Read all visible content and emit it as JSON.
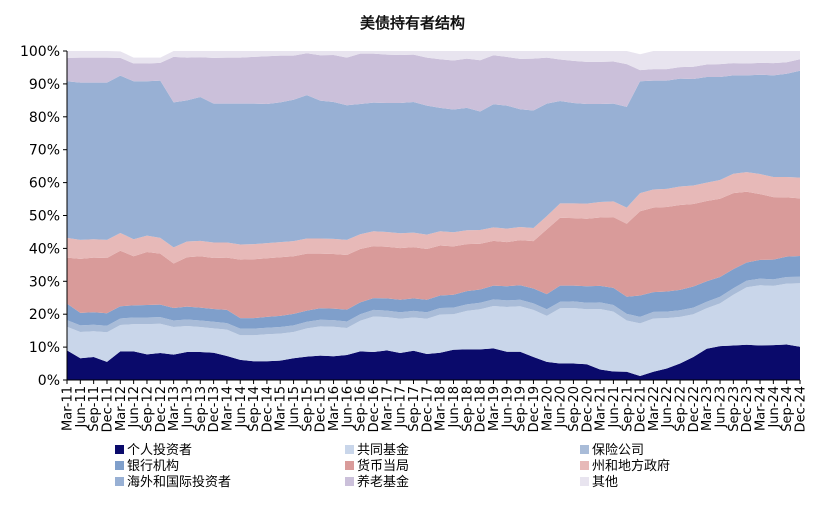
{
  "chart_data": {
    "type": "area",
    "title": "美债持有者结构",
    "xlabel": "",
    "ylabel": "",
    "ylim": [
      0,
      100
    ],
    "y_ticks": [
      "0%",
      "10%",
      "20%",
      "30%",
      "40%",
      "50%",
      "60%",
      "70%",
      "80%",
      "90%",
      "100%"
    ],
    "x": [
      "Mar-11",
      "Jun-11",
      "Sep-11",
      "Dec-11",
      "Mar-12",
      "Jun-12",
      "Sep-12",
      "Dec-12",
      "Mar-13",
      "Jun-13",
      "Sep-13",
      "Dec-13",
      "Mar-14",
      "Jun-14",
      "Sep-14",
      "Dec-14",
      "Mar-15",
      "Jun-15",
      "Sep-15",
      "Dec-15",
      "Mar-16",
      "Jun-16",
      "Sep-16",
      "Dec-16",
      "Mar-17",
      "Jun-17",
      "Sep-17",
      "Dec-17",
      "Mar-18",
      "Jun-18",
      "Sep-18",
      "Dec-18",
      "Mar-19",
      "Jun-19",
      "Sep-19",
      "Dec-19",
      "Mar-20",
      "Jun-20",
      "Sep-20",
      "Dec-20",
      "Mar-21",
      "Jun-21",
      "Sep-21",
      "Dec-21",
      "Mar-22",
      "Jun-22",
      "Sep-22",
      "Dec-22",
      "Mar-23",
      "Jun-23",
      "Sep-23",
      "Dec-23",
      "Mar-24",
      "Jun-24",
      "Sep-24",
      "Dec-24"
    ],
    "legend_position": "bottom",
    "grid": false,
    "series": [
      {
        "name": "个人投资者",
        "color": "#0a0a6b",
        "values": [
          9.0,
          6.6,
          7.0,
          5.5,
          8.7,
          8.7,
          7.8,
          8.2,
          7.7,
          8.5,
          8.5,
          8.3,
          7.3,
          6.1,
          5.7,
          5.7,
          5.9,
          6.6,
          7.1,
          7.4,
          7.2,
          7.6,
          8.7,
          8.5,
          9.0,
          8.2,
          8.9,
          7.9,
          8.3,
          9.2,
          9.3,
          9.3,
          9.6,
          8.6,
          8.6,
          7.0,
          5.5,
          5.0,
          5.0,
          4.8,
          3.2,
          2.6,
          2.5,
          1.2,
          2.5,
          3.5,
          5.0,
          7.0,
          9.5,
          10.3,
          10.5,
          10.7,
          10.5,
          10.6,
          10.8,
          10.1
        ]
      },
      {
        "name": "共同基金",
        "color": "#c9d6ea",
        "values": [
          7.2,
          8.0,
          7.8,
          9.0,
          8.0,
          8.3,
          9.2,
          8.9,
          8.4,
          7.9,
          7.6,
          7.4,
          8.0,
          7.5,
          7.9,
          8.2,
          8.2,
          8.0,
          8.6,
          8.9,
          9.0,
          8.2,
          9.3,
          10.8,
          10.1,
          10.4,
          10.1,
          10.7,
          11.6,
          10.8,
          11.7,
          12.2,
          12.9,
          13.6,
          13.8,
          14.3,
          14.0,
          16.8,
          16.9,
          16.7,
          18.4,
          18.2,
          15.6,
          16.0,
          16.2,
          15.3,
          14.2,
          13.0,
          12.3,
          13.0,
          15.4,
          17.5,
          18.3,
          18.0,
          18.5,
          19.3
        ]
      },
      {
        "name": "保险公司",
        "color": "#a9bcd8",
        "values": [
          2.0,
          2.0,
          2.0,
          2.0,
          2.0,
          2.0,
          2.0,
          2.0,
          2.0,
          2.0,
          2.0,
          2.0,
          2.0,
          2.0,
          2.0,
          2.0,
          2.0,
          2.0,
          2.0,
          2.0,
          2.0,
          2.0,
          2.0,
          2.0,
          2.0,
          2.0,
          2.0,
          2.0,
          2.0,
          2.0,
          2.0,
          2.0,
          2.0,
          2.0,
          2.0,
          2.0,
          2.0,
          2.0,
          2.0,
          2.0,
          2.0,
          2.0,
          2.0,
          2.0,
          2.0,
          2.0,
          2.0,
          2.0,
          2.0,
          2.0,
          2.0,
          2.0,
          2.0,
          2.0,
          2.0,
          2.0
        ]
      },
      {
        "name": "银行机构",
        "color": "#7f9fcb",
        "values": [
          5.0,
          3.8,
          3.8,
          3.8,
          3.7,
          3.7,
          3.8,
          3.8,
          3.8,
          3.9,
          3.9,
          3.9,
          4.0,
          3.2,
          3.2,
          3.3,
          3.4,
          3.5,
          3.4,
          3.5,
          3.5,
          3.6,
          3.6,
          3.6,
          3.7,
          3.8,
          3.8,
          3.8,
          3.8,
          3.9,
          4.0,
          4.0,
          4.2,
          4.3,
          4.4,
          4.5,
          4.6,
          4.9,
          4.8,
          5.0,
          5.0,
          5.2,
          5.2,
          6.5,
          6.0,
          6.1,
          6.2,
          6.4,
          6.2,
          6.0,
          5.8,
          5.5,
          5.7,
          6.0,
          6.2,
          6.3
        ]
      },
      {
        "name": "货币当局",
        "color": "#d99b9a",
        "values": [
          14.0,
          16.4,
          16.6,
          16.8,
          16.9,
          14.9,
          16.1,
          15.5,
          13.5,
          15.0,
          15.6,
          15.5,
          15.9,
          17.8,
          17.9,
          17.8,
          17.8,
          17.5,
          17.3,
          16.6,
          16.6,
          16.6,
          16.2,
          15.8,
          15.7,
          15.7,
          15.6,
          15.4,
          15.2,
          14.7,
          14.3,
          13.9,
          13.6,
          13.4,
          13.7,
          14.4,
          19.7,
          20.6,
          20.5,
          20.5,
          20.8,
          21.5,
          22.2,
          25.6,
          25.7,
          25.7,
          25.8,
          25.1,
          24.4,
          23.8,
          23.1,
          21.5,
          20.0,
          19.0,
          18.0,
          17.5
        ]
      },
      {
        "name": "州和地方政府",
        "color": "#e7b9b8",
        "values": [
          6.0,
          5.8,
          5.6,
          5.5,
          5.4,
          5.2,
          5.0,
          4.8,
          4.9,
          4.8,
          4.7,
          4.7,
          4.6,
          4.6,
          4.6,
          4.6,
          4.6,
          4.6,
          4.6,
          4.6,
          4.6,
          4.6,
          4.5,
          4.5,
          4.5,
          4.5,
          4.4,
          4.4,
          4.3,
          4.3,
          4.2,
          4.2,
          4.1,
          4.1,
          4.0,
          4.0,
          4.0,
          4.4,
          4.5,
          4.6,
          4.7,
          4.8,
          4.9,
          5.5,
          5.5,
          5.5,
          5.6,
          5.6,
          5.6,
          5.7,
          5.9,
          6.0,
          6.1,
          6.1,
          6.2,
          6.3
        ]
      },
      {
        "name": "海外和国际投资者",
        "color": "#98b0d4",
        "values": [
          47.6,
          47.8,
          47.6,
          47.8,
          47.8,
          48.0,
          46.9,
          47.8,
          44.1,
          42.9,
          43.7,
          42.2,
          42.2,
          42.8,
          42.7,
          42.3,
          42.5,
          43.0,
          43.6,
          41.9,
          41.6,
          40.9,
          39.6,
          39.1,
          39.2,
          39.6,
          39.7,
          39.2,
          37.5,
          37.3,
          37.2,
          36.0,
          37.4,
          37.4,
          35.8,
          35.7,
          34.2,
          31.1,
          30.5,
          30.3,
          29.8,
          29.7,
          30.6,
          34.0,
          33.1,
          32.9,
          32.8,
          32.4,
          32.1,
          31.3,
          29.9,
          29.4,
          30.2,
          30.9,
          31.4,
          32.5
        ]
      },
      {
        "name": "养老基金",
        "color": "#cbc0da",
        "values": [
          7.1,
          7.6,
          7.6,
          7.6,
          5.4,
          5.4,
          5.4,
          5.4,
          13.8,
          13.0,
          12.1,
          13.9,
          14.0,
          14.0,
          14.2,
          14.5,
          14.2,
          13.4,
          12.7,
          13.8,
          14.3,
          14.5,
          15.3,
          14.9,
          14.7,
          14.6,
          14.4,
          14.6,
          14.8,
          14.9,
          15.0,
          15.6,
          14.9,
          14.8,
          15.3,
          15.8,
          14.0,
          12.6,
          12.8,
          12.8,
          12.8,
          12.8,
          13.0,
          3.4,
          3.5,
          3.5,
          3.5,
          3.7,
          3.8,
          3.9,
          3.7,
          3.6,
          3.6,
          3.7,
          3.5,
          3.5
        ]
      },
      {
        "name": "其他",
        "color": "#e8e4ef",
        "values": [
          2.1,
          2.0,
          2.0,
          2.0,
          2.0,
          1.8,
          1.8,
          1.6,
          1.8,
          2.0,
          1.9,
          2.1,
          2.0,
          2.0,
          1.8,
          1.6,
          1.4,
          1.4,
          0.7,
          1.3,
          1.2,
          2.0,
          0.8,
          0.8,
          1.1,
          1.2,
          1.1,
          2.0,
          2.5,
          2.9,
          2.3,
          2.8,
          1.3,
          1.8,
          2.4,
          2.3,
          2.0,
          2.6,
          3.0,
          3.3,
          3.3,
          3.4,
          4.0,
          4.8,
          5.5,
          5.5,
          4.9,
          4.8,
          4.1,
          4.0,
          3.7,
          3.8,
          3.6,
          3.7,
          3.4,
          2.5
        ]
      }
    ]
  }
}
